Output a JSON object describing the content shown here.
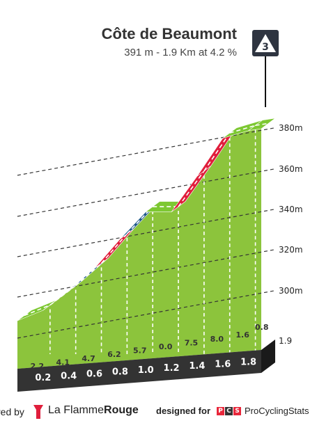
{
  "header": {
    "title": "Côte de Beaumont",
    "subtitle": "391 m - 1.9 Km at 4.2 %",
    "category_badge": "3"
  },
  "chart_data": {
    "type": "area",
    "title": "Côte de Beaumont",
    "subtitle": "391 m - 1.9 Km at 4.2 %",
    "start_altitude_label": "1.9",
    "altitude_ticks": [
      300,
      320,
      340,
      360,
      380
    ],
    "altitude_tick_labels": [
      "300m",
      "320m",
      "340m",
      "360m",
      "380m"
    ],
    "km_labels": [
      "0.2",
      "0.4",
      "0.6",
      "0.8",
      "1.0",
      "1.2",
      "1.4",
      "1.6",
      "1.8"
    ],
    "segments": [
      {
        "km_start": 0.0,
        "km_end": 0.2,
        "gradient_label": "2.2",
        "gradient": 2.2,
        "color": "#7dc832"
      },
      {
        "km_start": 0.2,
        "km_end": 0.4,
        "gradient_label": "4.1",
        "gradient": 4.1,
        "color": "#1f5a8c"
      },
      {
        "km_start": 0.4,
        "km_end": 0.6,
        "gradient_label": "4.7",
        "gradient": 4.7,
        "color": "#1f5a8c"
      },
      {
        "km_start": 0.6,
        "km_end": 0.8,
        "gradient_label": "6.2",
        "gradient": 6.2,
        "color": "#e01e3c"
      },
      {
        "km_start": 0.8,
        "km_end": 1.0,
        "gradient_label": "5.7",
        "gradient": 5.7,
        "color": "#1f5a8c"
      },
      {
        "km_start": 1.0,
        "km_end": 1.2,
        "gradient_label": "0.0",
        "gradient": 0.0,
        "color": "#7dc832"
      },
      {
        "km_start": 1.2,
        "km_end": 1.4,
        "gradient_label": "7.5",
        "gradient": 7.5,
        "color": "#e01e3c"
      },
      {
        "km_start": 1.4,
        "km_end": 1.6,
        "gradient_label": "8.0",
        "gradient": 8.0,
        "color": "#e01e3c"
      },
      {
        "km_start": 1.6,
        "km_end": 1.8,
        "gradient_label": "1.6",
        "gradient": 1.6,
        "color": "#7dc832"
      },
      {
        "km_start": 1.8,
        "km_end": 1.9,
        "gradient_label": "0.8",
        "gradient": 0.8,
        "color": "#7dc832"
      }
    ],
    "colors": {
      "profile_fill": "#8cc43c",
      "top_surface_easy": "#7dc832",
      "top_surface_medium": "#1f5a8c",
      "top_surface_hard": "#e01e3c",
      "base_bar": "#333333",
      "side_wall": "#a09a8c"
    }
  },
  "footer": {
    "powered_by": "red by",
    "brand_regular": "La Flamme",
    "brand_bold": "Rouge",
    "designed_for": "designed for",
    "pcs_letters": [
      "P",
      "C",
      "S"
    ],
    "pcs_name": "ProCyclingStats"
  }
}
